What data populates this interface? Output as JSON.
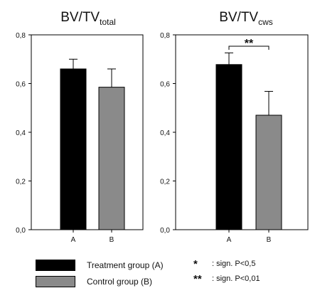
{
  "chart_data": [
    {
      "type": "bar",
      "title": "BV/TV",
      "title_subscript": "total",
      "categories": [
        "A",
        "B"
      ],
      "values": [
        0.66,
        0.585
      ],
      "errors": [
        0.04,
        0.075
      ],
      "bar_colors": [
        "#000000",
        "#8a8a8a"
      ],
      "ylim": [
        0.0,
        0.8
      ],
      "yticks": [
        "0,0",
        "0,2",
        "0,4",
        "0,6",
        "0,8"
      ],
      "grid": false
    },
    {
      "type": "bar",
      "title": "BV/TV",
      "title_subscript": "cws",
      "categories": [
        "A",
        "B"
      ],
      "values": [
        0.678,
        0.47
      ],
      "errors": [
        0.048,
        0.098
      ],
      "bar_colors": [
        "#000000",
        "#8a8a8a"
      ],
      "ylim": [
        0.0,
        0.8
      ],
      "yticks": [
        "0,0",
        "0,2",
        "0,4",
        "0,6",
        "0,8"
      ],
      "grid": false,
      "annotation": "**"
    }
  ],
  "legend": [
    {
      "label": "Treatment group (A)",
      "color": "#000000"
    },
    {
      "label": "Control group (B)",
      "color": "#8a8a8a"
    }
  ],
  "significance": [
    {
      "stars": "*",
      "label": ": sign. P<0,5"
    },
    {
      "stars": "**",
      "label": ": sign. P<0,01"
    }
  ]
}
